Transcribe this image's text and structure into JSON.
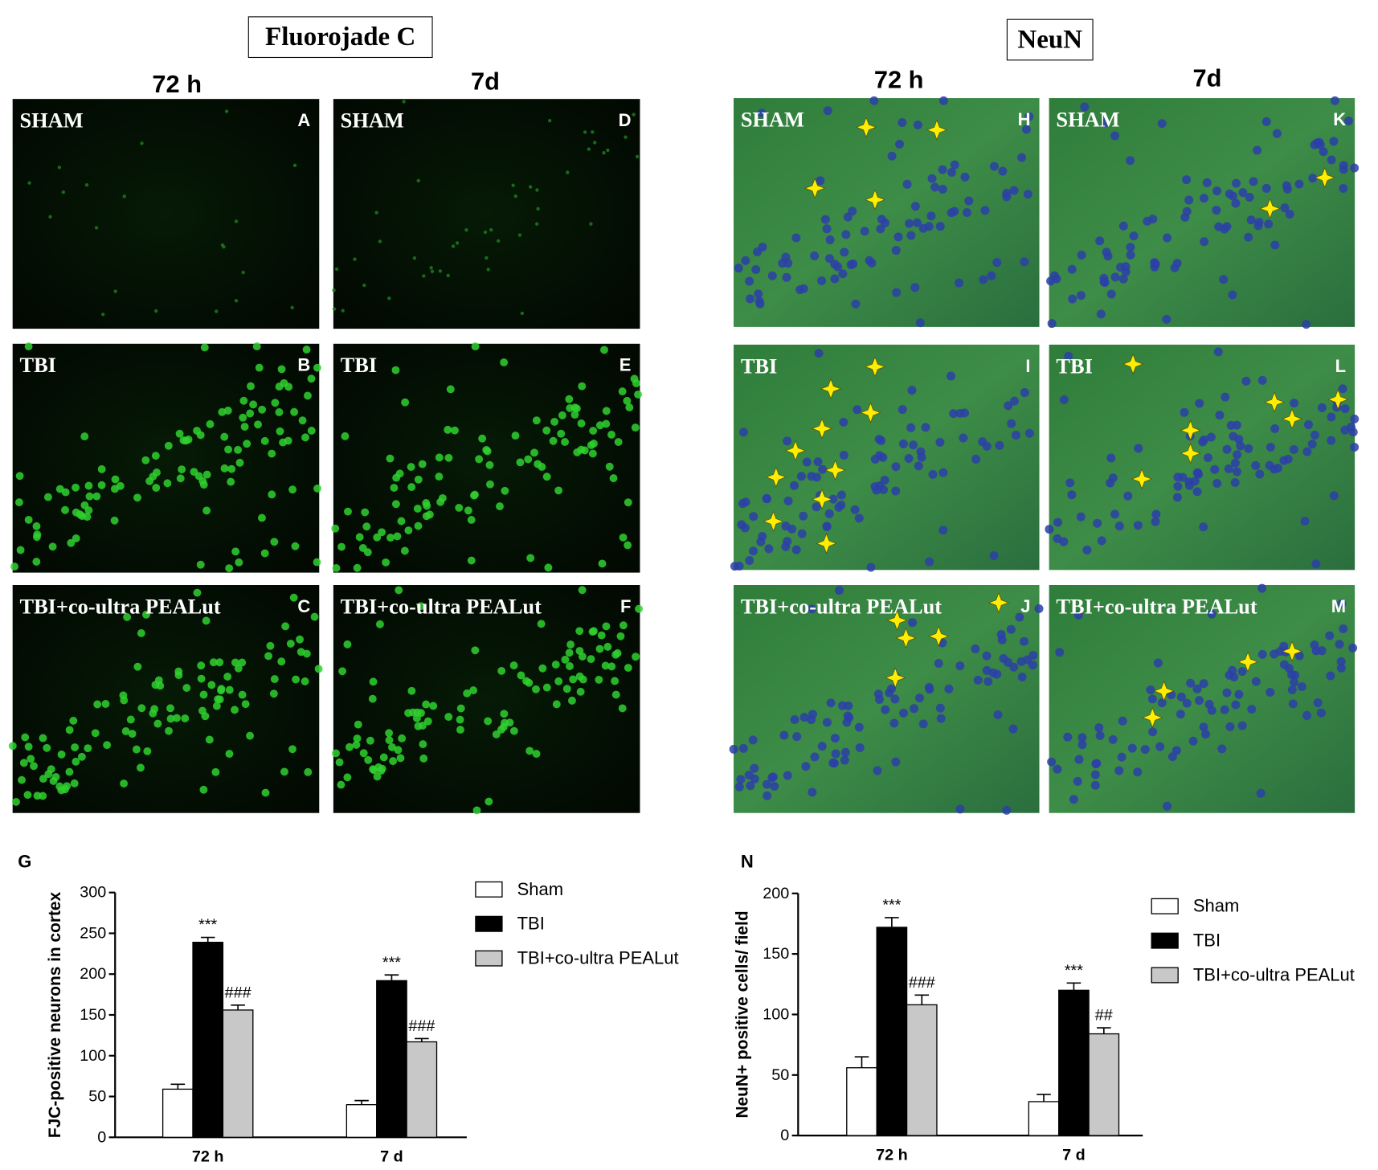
{
  "fluorojade": {
    "title": "Fluorojade C",
    "columns": [
      "72 h",
      "7d"
    ],
    "panels": [
      [
        {
          "group": "SHAM",
          "letter": "A"
        },
        {
          "group": "TBI",
          "letter": "B"
        },
        {
          "group": "TBI+co-ultra PEALut",
          "letter": "C"
        }
      ],
      [
        {
          "group": "SHAM",
          "letter": "D"
        },
        {
          "group": "TBI",
          "letter": "E"
        },
        {
          "group": "TBI+co-ultra PEALut",
          "letter": "F"
        }
      ]
    ]
  },
  "neun": {
    "title": "NeuN",
    "columns": [
      "72 h",
      "7d"
    ],
    "panels": [
      [
        {
          "group": "SHAM",
          "letter": "H"
        },
        {
          "group": "TBI",
          "letter": "I"
        },
        {
          "group": "TBI+co-ultra PEALut",
          "letter": "J"
        }
      ],
      [
        {
          "group": "SHAM",
          "letter": "K"
        },
        {
          "group": "TBI",
          "letter": "L"
        },
        {
          "group": "TBI+co-ultra PEALut",
          "letter": "M"
        }
      ]
    ]
  },
  "chart_data": [
    {
      "type": "bar",
      "panel_letter": "G",
      "ylabel": "FJC-positive neurons in cortex",
      "categories": [
        "72 h",
        "7 d"
      ],
      "series": [
        {
          "name": "Sham",
          "color": "#ffffff",
          "values": [
            59,
            40
          ],
          "errors": [
            6,
            5
          ]
        },
        {
          "name": "TBI",
          "color": "#000000",
          "values": [
            239,
            192
          ],
          "errors": [
            6,
            7
          ],
          "annotations": [
            "***",
            "***"
          ]
        },
        {
          "name": "TBI+co-ultra PEALut",
          "color": "#c8c8c8",
          "values": [
            156,
            117
          ],
          "errors": [
            6,
            4
          ],
          "annotations": [
            "###",
            "###"
          ]
        }
      ],
      "ylim": [
        0,
        300
      ],
      "yticks": [
        0,
        50,
        100,
        150,
        200,
        250,
        300
      ]
    },
    {
      "type": "bar",
      "panel_letter": "N",
      "ylabel": "NeuN+ positive cells/ field",
      "categories": [
        "72 h",
        "7 d"
      ],
      "series": [
        {
          "name": "Sham",
          "color": "#ffffff",
          "values": [
            56,
            28
          ],
          "errors": [
            9,
            6
          ]
        },
        {
          "name": "TBI",
          "color": "#000000",
          "values": [
            172,
            120
          ],
          "errors": [
            8,
            6
          ],
          "annotations": [
            "***",
            "***"
          ]
        },
        {
          "name": "TBI+co-ultra PEALut",
          "color": "#c8c8c8",
          "values": [
            108,
            84
          ],
          "errors": [
            8,
            5
          ],
          "annotations": [
            "###",
            "##"
          ]
        }
      ],
      "ylim": [
        0,
        200
      ],
      "yticks": [
        0,
        50,
        100,
        150,
        200
      ]
    }
  ]
}
